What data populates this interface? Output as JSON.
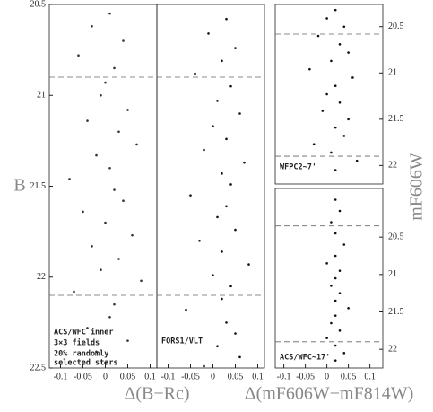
{
  "chart_data": [
    {
      "type": "scatter",
      "ylabel": "B",
      "xlabel": "Δ(B−Rc)",
      "ytick_side": "left",
      "color": "#333",
      "xlim": [
        -0.125,
        0.115
      ],
      "ylim": [
        22.5,
        20.5
      ],
      "xticks": [
        -0.1,
        -0.05,
        0,
        0.05,
        0.1
      ],
      "yticks": [
        20.5,
        21,
        21.5,
        22,
        22.5
      ],
      "dashed_lines": [
        20.9,
        22.1
      ],
      "annotations": [
        "ACS/WFC inner",
        "3×3 fields",
        "20% randomly",
        "selected stars"
      ],
      "x": [
        0.01,
        -0.03,
        0.04,
        -0.06,
        0.02,
        0.0,
        -0.01,
        0.05,
        -0.04,
        0.03,
        0.07,
        -0.02,
        0.01,
        -0.08,
        0.02,
        0.04,
        -0.05,
        0.0,
        0.06,
        -0.03,
        0.03,
        -0.01,
        0.08,
        -0.07,
        0.02,
        0.01,
        -0.04,
        0.05,
        -0.02,
        0.0
      ],
      "values": [
        20.55,
        20.62,
        20.7,
        20.78,
        20.85,
        20.93,
        21.0,
        21.08,
        21.14,
        21.2,
        21.27,
        21.33,
        21.4,
        21.46,
        21.52,
        21.58,
        21.64,
        21.7,
        21.77,
        21.83,
        21.9,
        21.96,
        22.02,
        22.08,
        22.15,
        22.22,
        22.28,
        22.35,
        22.41,
        22.47
      ]
    },
    {
      "type": "scatter",
      "color": "#111",
      "xlim": [
        -0.125,
        0.115
      ],
      "ylim": [
        22.5,
        20.5
      ],
      "xticks": [
        -0.1,
        -0.05,
        0,
        0.05,
        0.1
      ],
      "dashed_lines": [
        20.9,
        22.1
      ],
      "annotations": [
        "FORS1/VLT"
      ],
      "x": [
        0.03,
        -0.01,
        0.05,
        0.02,
        -0.04,
        0.04,
        0.01,
        0.06,
        0.0,
        0.03,
        -0.02,
        0.07,
        0.02,
        0.04,
        -0.05,
        0.03,
        0.01,
        0.05,
        -0.03,
        0.02,
        0.08,
        0.0,
        0.04,
        0.02,
        -0.06,
        0.03,
        0.05,
        0.01,
        0.06,
        -0.02
      ],
      "values": [
        20.58,
        20.66,
        20.74,
        20.81,
        20.88,
        20.95,
        21.03,
        21.1,
        21.17,
        21.24,
        21.3,
        21.37,
        21.43,
        21.49,
        21.55,
        21.61,
        21.67,
        21.74,
        21.8,
        21.86,
        21.93,
        21.99,
        22.05,
        22.12,
        22.18,
        22.25,
        22.31,
        22.38,
        22.44,
        22.49
      ]
    },
    {
      "type": "scatter",
      "ylabel": "mF606W",
      "ytick_side": "right",
      "color": "#111",
      "xlim": [
        -0.12,
        0.13
      ],
      "ylim": [
        22.2,
        20.26
      ],
      "yticks": [
        20.5,
        21,
        21.5,
        22
      ],
      "dashed_lines": [
        20.58,
        21.9
      ],
      "annotations": [
        "WFPC2~7'"
      ],
      "x": [
        0.02,
        0.0,
        0.04,
        -0.02,
        0.03,
        0.05,
        0.01,
        -0.04,
        0.06,
        0.02,
        0.0,
        0.03,
        -0.01,
        0.05,
        0.02,
        0.04,
        -0.03,
        0.01,
        0.07,
        0.02
      ],
      "values": [
        20.32,
        20.41,
        20.5,
        20.6,
        20.69,
        20.78,
        20.87,
        20.96,
        21.05,
        21.14,
        21.23,
        21.32,
        21.41,
        21.5,
        21.59,
        21.68,
        21.77,
        21.86,
        21.95,
        22.05
      ]
    },
    {
      "type": "scatter",
      "xlabel": "Δ(mF606W−mF814W)",
      "ytick_side": "right",
      "color": "#111",
      "xlim": [
        -0.12,
        0.13
      ],
      "ylim": [
        22.25,
        19.85
      ],
      "xticks": [
        -0.1,
        -0.05,
        0,
        0.05,
        0.1
      ],
      "yticks": [
        20.5,
        21,
        21.5,
        22
      ],
      "dashed_lines": [
        20.35,
        21.9
      ],
      "annotations": [
        "ACS/WFC~17'"
      ],
      "x": [
        0.02,
        0.03,
        0.01,
        0.02,
        0.04,
        0.02,
        0.0,
        0.03,
        0.02,
        0.01,
        0.03,
        0.02,
        0.05,
        0.02,
        0.01,
        0.03,
        0.0,
        0.02,
        0.04,
        0.02
      ],
      "values": [
        20.0,
        20.15,
        20.3,
        20.45,
        20.6,
        20.75,
        20.85,
        20.95,
        21.05,
        21.15,
        21.25,
        21.35,
        21.45,
        21.55,
        21.65,
        21.75,
        21.85,
        21.95,
        22.05,
        22.15
      ]
    }
  ]
}
